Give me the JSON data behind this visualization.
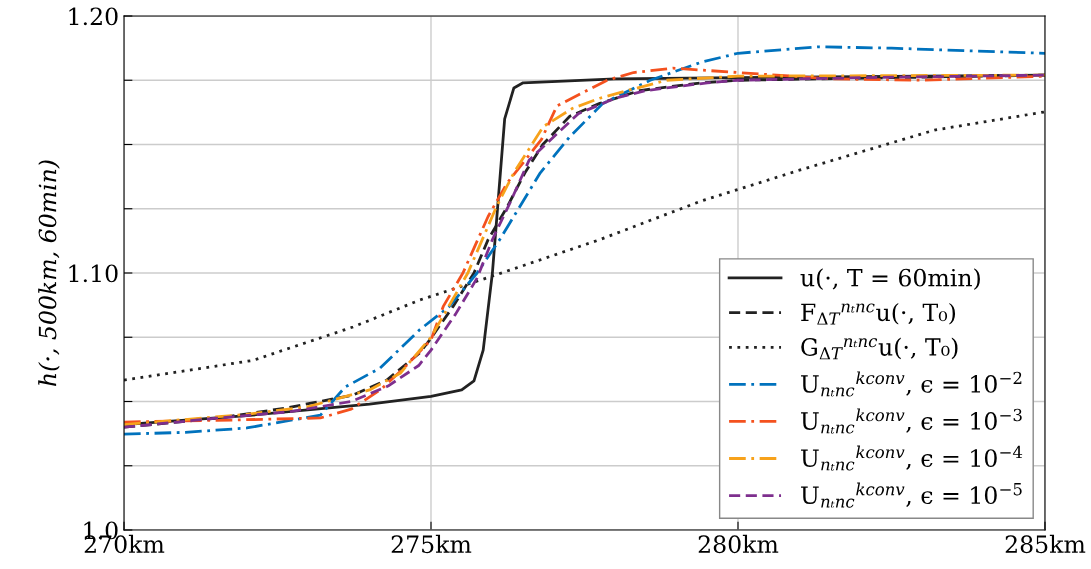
{
  "chart_data": {
    "type": "line",
    "ylabel": "h(·, 500km, 60min)",
    "xlim": [
      270,
      285
    ],
    "ylim": [
      1.0,
      1.2
    ],
    "xticks": [
      {
        "value": 270,
        "label": "270km"
      },
      {
        "value": 275,
        "label": "275km"
      },
      {
        "value": 280,
        "label": "280km"
      },
      {
        "value": 285,
        "label": "285km"
      }
    ],
    "yticks": [
      {
        "value": 1.0,
        "label": "1.0"
      },
      {
        "value": 1.025,
        "label": null
      },
      {
        "value": 1.05,
        "label": null
      },
      {
        "value": 1.075,
        "label": null
      },
      {
        "value": 1.1,
        "label": "1.10"
      },
      {
        "value": 1.125,
        "label": null
      },
      {
        "value": 1.15,
        "label": null
      },
      {
        "value": 1.175,
        "label": null
      },
      {
        "value": 1.2,
        "label": "1.20"
      }
    ],
    "grid": true,
    "legend": "bottom right",
    "marker": "none",
    "series": [
      {
        "name": "u(·, T = 60min)",
        "color": "#222222",
        "line_style": "solid",
        "x": [
          270,
          272,
          274,
          275,
          275.5,
          275.7,
          275.85,
          275.95,
          276.0,
          276.1,
          276.2,
          276.35,
          276.5,
          278,
          280,
          285
        ],
        "values": [
          1.041,
          1.0445,
          1.049,
          1.052,
          1.0545,
          1.058,
          1.07,
          1.09,
          1.1,
          1.13,
          1.16,
          1.172,
          1.174,
          1.1755,
          1.176,
          1.177
        ]
      },
      {
        "name": "F$_{ΔT}$$^{nₜnc}$u(·, T₀)",
        "color": "#222222",
        "line_style": "dashed",
        "x": [
          270,
          271.56,
          272.65,
          273.73,
          274.28,
          274.82,
          274.98,
          275.36,
          275.7,
          275.93,
          276.24,
          276.53,
          276.82,
          277.26,
          277.75,
          278.4,
          279.4,
          280,
          285
        ],
        "values": [
          1.04,
          1.0436,
          1.0475,
          1.0525,
          1.0583,
          1.069,
          1.074,
          1.087,
          1.1,
          1.113,
          1.1257,
          1.139,
          1.15,
          1.161,
          1.166,
          1.171,
          1.174,
          1.175,
          1.177
        ]
      },
      {
        "name": "G$_{ΔT}$$^{nₜnc}$u(·, T₀)",
        "color": "#222222",
        "line_style": "dotted",
        "x": [
          270,
          272.1,
          273.73,
          274.82,
          275.9,
          277.75,
          279.4,
          281,
          283.2,
          285
        ],
        "values": [
          1.0583,
          1.066,
          1.079,
          1.0895,
          1.098,
          1.113,
          1.128,
          1.14,
          1.1556,
          1.1627
        ]
      },
      {
        "name": "U$_{nₜnc}$$^{kconv}$, ϵ = 10$^{−2}$",
        "color": "#0072bd",
        "line_style": "dashdot",
        "x": [
          270,
          271,
          272,
          273.2,
          273.6,
          274.17,
          274.82,
          275.3,
          275.75,
          276.12,
          276.45,
          276.78,
          277.26,
          277.8,
          278.57,
          279.4,
          280,
          281.3,
          282.5,
          283.7,
          285
        ],
        "values": [
          1.0373,
          1.038,
          1.0397,
          1.0447,
          1.0556,
          1.063,
          1.078,
          1.087,
          1.1,
          1.113,
          1.126,
          1.139,
          1.153,
          1.166,
          1.175,
          1.182,
          1.1855,
          1.188,
          1.1875,
          1.1865,
          1.1855
        ]
      },
      {
        "name": "U$_{nₜnc}$$^{kconv}$, ϵ = 10$^{−3}$",
        "color": "#f4511e",
        "line_style": "dashdot",
        "x": [
          270,
          271,
          271.8,
          273.2,
          273.7,
          274.2,
          274.6,
          275.0,
          275.2,
          275.52,
          275.93,
          276.24,
          276.8,
          277.05,
          277.87,
          278.3,
          278.94,
          280,
          281.55,
          283,
          285
        ],
        "values": [
          1.042,
          1.0425,
          1.0428,
          1.0436,
          1.047,
          1.055,
          1.064,
          1.074,
          1.087,
          1.1,
          1.122,
          1.135,
          1.152,
          1.165,
          1.175,
          1.178,
          1.1797,
          1.178,
          1.1755,
          1.175,
          1.1766
        ]
      },
      {
        "name": "U$_{nₜnc}$$^{kconv}$, ϵ = 10$^{−4}$",
        "color": "#f7a21b",
        "line_style": "dashdot",
        "x": [
          270,
          272,
          273,
          274,
          274.5,
          275.0,
          275.6,
          276.07,
          276.35,
          276.83,
          277.3,
          277.75,
          278.2,
          278.84,
          280,
          285
        ],
        "values": [
          1.041,
          1.045,
          1.048,
          1.0545,
          1.061,
          1.075,
          1.1,
          1.126,
          1.139,
          1.157,
          1.164,
          1.168,
          1.171,
          1.175,
          1.1766,
          1.177
        ]
      },
      {
        "name": "U$_{nₜnc}$$^{kconv}$, ϵ = 10$^{−5}$",
        "color": "#7e2f8e",
        "line_style": "dashed",
        "x": [
          270,
          271.5,
          272.7,
          273.7,
          274.3,
          274.8,
          275.0,
          275.4,
          275.75,
          276.0,
          276.3,
          276.6,
          277.0,
          277.4,
          278,
          278.5,
          279.5,
          280,
          282,
          285
        ],
        "values": [
          1.04,
          1.0435,
          1.046,
          1.05,
          1.056,
          1.064,
          1.07,
          1.084,
          1.098,
          1.113,
          1.128,
          1.144,
          1.153,
          1.162,
          1.168,
          1.171,
          1.174,
          1.175,
          1.176,
          1.177
        ]
      }
    ]
  }
}
